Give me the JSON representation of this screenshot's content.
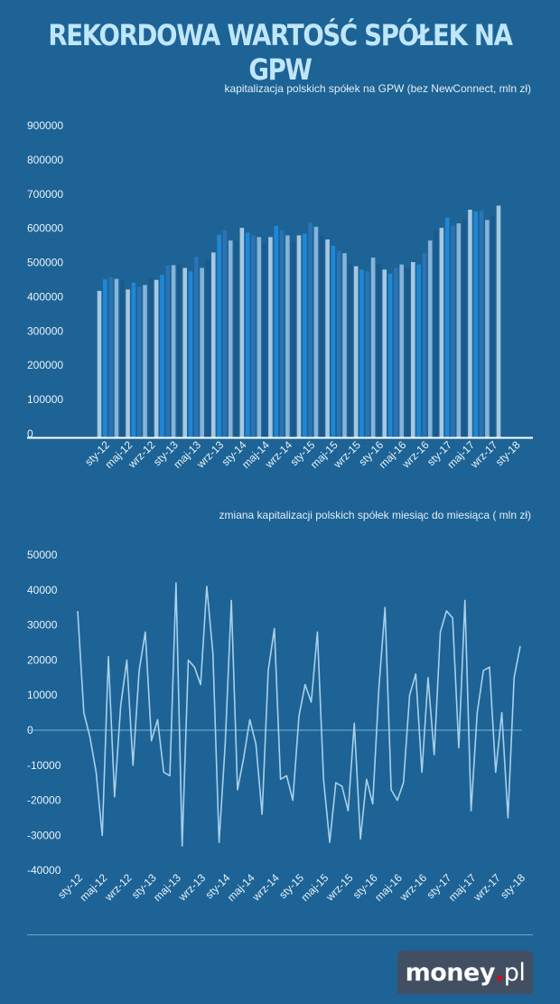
{
  "title": "REKORDOWA WARTOŚĆ SPÓŁEK NA GPW",
  "logo": {
    "part1": "money",
    "dot": ".",
    "part2": "pl"
  },
  "colors": {
    "background": "#1d6395",
    "bar_palette": [
      "#a7c8e2",
      "#1e88d6",
      "#2a73b4",
      "#86b4d8",
      "#1a5a8c"
    ],
    "line": "#a9d0ea",
    "zero_line": "#7fb1d4",
    "axis": "#ffffff"
  },
  "chart_data": [
    {
      "type": "bar",
      "title": "kapitalizacja polskich spółek na GPW  (bez NewConnect, mln zł)",
      "ylim": [
        0,
        900000
      ],
      "yticks": [
        "900000",
        "800000",
        "700000",
        "600000",
        "500000",
        "400000",
        "300000",
        "200000",
        "100000",
        "0"
      ],
      "tick_labels": [
        "sty-12",
        "maj-12",
        "wrz-12",
        "sty-13",
        "maj-13",
        "wrz-13",
        "sty-14",
        "maj-14",
        "wrz-14",
        "sty-15",
        "maj-15",
        "wrz-15",
        "sty-16",
        "maj-16",
        "wrz-16",
        "sty-17",
        "maj-17",
        "wrz-17",
        "sty-18"
      ],
      "values": [
        428000,
        462000,
        468000,
        463000,
        458000,
        432000,
        452000,
        440000,
        445000,
        465000,
        460000,
        475000,
        502000,
        503000,
        505000,
        495000,
        485000,
        528000,
        495000,
        518000,
        540000,
        592000,
        605000,
        575000,
        575000,
        612000,
        598000,
        590000,
        585000,
        565000,
        585000,
        618000,
        605000,
        590000,
        572000,
        590000,
        595000,
        628000,
        615000,
        588000,
        578000,
        560000,
        545000,
        538000,
        508000,
        500000,
        490000,
        485000,
        525000,
        508000,
        490000,
        478000,
        495000,
        505000,
        495000,
        512000,
        505000,
        538000,
        575000,
        605000,
        612000,
        642000,
        618000,
        625000,
        640000,
        665000,
        660000,
        662000,
        635000,
        648000,
        677000
      ]
    },
    {
      "type": "line",
      "title": "zmiana kapitalizacji polskich spółek miesiąc do miesiąca ( mln zł)",
      "ylim": [
        -40000,
        50000
      ],
      "yticks": [
        "50000",
        "40000",
        "30000",
        "20000",
        "10000",
        "0",
        "-10000",
        "-20000",
        "-30000",
        "-40000"
      ],
      "tick_labels": [
        "sty-12",
        "maj-12",
        "wrz-12",
        "sty-13",
        "maj-13",
        "wrz-13",
        "sty-14",
        "maj-14",
        "wrz-14",
        "sty-15",
        "maj-15",
        "wrz-15",
        "sty-16",
        "maj-16",
        "wrz-16",
        "sty-17",
        "maj-17",
        "wrz-17",
        "sty-18"
      ],
      "values": [
        34000,
        5000,
        -2000,
        -12000,
        -30000,
        21000,
        -19000,
        7000,
        20000,
        -10000,
        17000,
        28000,
        -3000,
        3000,
        -12000,
        -13000,
        42000,
        -33000,
        20000,
        18000,
        13000,
        41000,
        22000,
        -32000,
        -4000,
        37000,
        -17000,
        -8000,
        3000,
        -4000,
        -24000,
        17000,
        29000,
        -14000,
        -13000,
        -20000,
        4000,
        13000,
        8000,
        28000,
        -14000,
        -32000,
        -15000,
        -16000,
        -23000,
        2000,
        -31000,
        -14000,
        -21000,
        12000,
        35000,
        -17000,
        -20000,
        -15000,
        10000,
        16000,
        -12000,
        15000,
        -7000,
        28000,
        34000,
        32000,
        -5000,
        37000,
        -23000,
        5000,
        17000,
        18000,
        -12000,
        5000,
        -25000,
        15000,
        24000
      ]
    }
  ]
}
